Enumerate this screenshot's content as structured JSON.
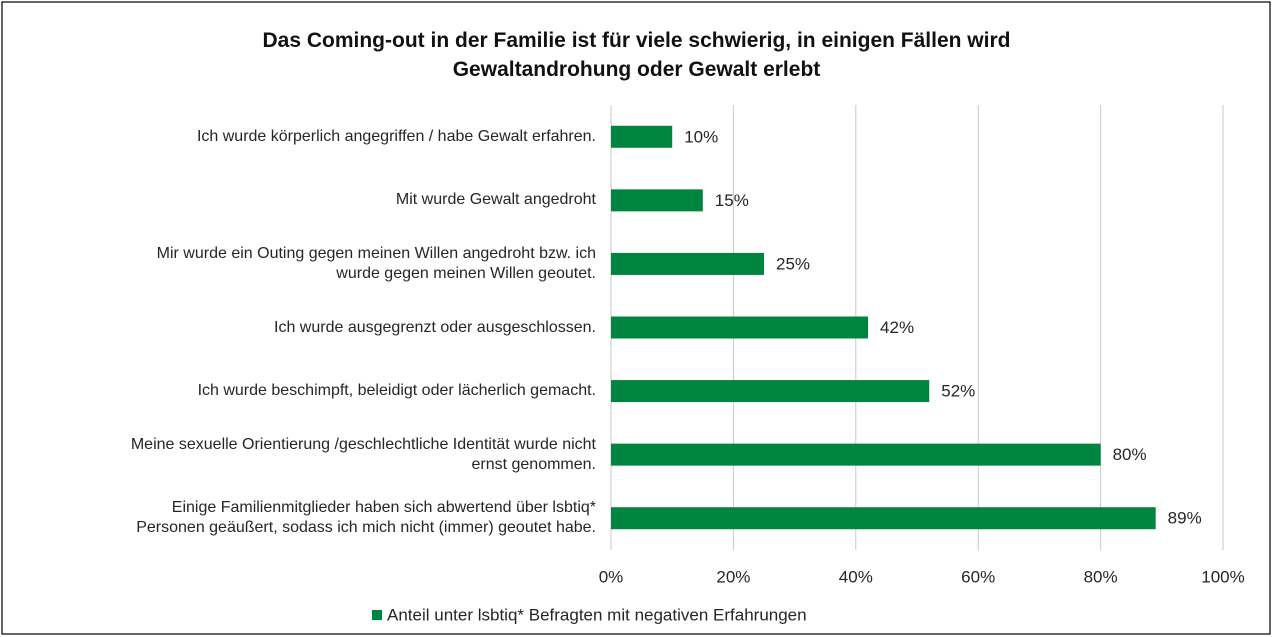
{
  "chart_data": {
    "type": "hbar",
    "title": "Das Coming-out in der Familie ist für viele schwierig, in einigen Fällen wird\nGewaltandrohung oder Gewalt erlebt",
    "categories": [
      "Ich wurde körperlich angegriffen / habe Gewalt erfahren.",
      "Mit wurde Gewalt angedroht",
      "Mir wurde ein Outing gegen meinen Willen angedroht bzw. ich\nwurde gegen meinen Willen geoutet.",
      "Ich wurde ausgegrenzt oder ausgeschlossen.",
      "Ich wurde beschimpft, beleidigt oder lächerlich gemacht.",
      "Meine sexuelle Orientierung /geschlechtliche Identität wurde nicht\nernst genommen.",
      "Einige Familienmitglieder haben sich abwertend über lsbtiq*\nPersonen geäußert, sodass ich mich nicht (immer) geoutet habe."
    ],
    "series": [
      {
        "name": "Anteil unter lsbtiq* Befragten mit negativen Erfahrungen",
        "color": "#00853f",
        "values": [
          10,
          15,
          25,
          42,
          52,
          80,
          89
        ],
        "value_labels": [
          "10%",
          "15%",
          "25%",
          "42%",
          "52%",
          "80%",
          "89%"
        ]
      }
    ],
    "xlim": [
      0,
      100
    ],
    "xticks": [
      {
        "value": 0,
        "label": "0%"
      },
      {
        "value": 20,
        "label": "20%"
      },
      {
        "value": 40,
        "label": "40%"
      },
      {
        "value": 60,
        "label": "60%"
      },
      {
        "value": 80,
        "label": "80%"
      },
      {
        "value": 100,
        "label": "100%"
      }
    ],
    "grid": true,
    "legend": "bottom"
  }
}
